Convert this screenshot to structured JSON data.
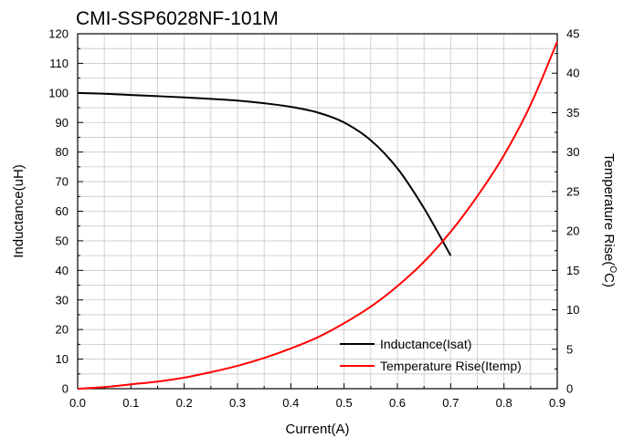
{
  "chart_data": {
    "type": "line",
    "title": "CMI-SSP6028NF-101M",
    "xlabel": "Current(A)",
    "ylabel_left": "Inductance(uH)",
    "ylabel_right": "Temperature Rise(",
    "ylabel_right_degree": "O",
    "ylabel_right_unit": "C)",
    "xlim": [
      0,
      0.9
    ],
    "ylim_left": [
      0,
      120
    ],
    "ylim_right": [
      0,
      45
    ],
    "x_ticks": [
      "0.0",
      "0.1",
      "0.2",
      "0.3",
      "0.4",
      "0.5",
      "0.6",
      "0.7",
      "0.8",
      "0.9"
    ],
    "y_left_ticks": [
      "0",
      "10",
      "20",
      "30",
      "40",
      "50",
      "60",
      "70",
      "80",
      "90",
      "100",
      "110",
      "120"
    ],
    "y_right_ticks": [
      "0",
      "5",
      "10",
      "15",
      "20",
      "25",
      "30",
      "35",
      "40",
      "45"
    ],
    "grid": true,
    "legend_position": "bottom-right",
    "series": [
      {
        "name": "Inductance(Isat)",
        "axis": "left",
        "color": "#000000",
        "x": [
          0,
          0.05,
          0.1,
          0.15,
          0.2,
          0.25,
          0.3,
          0.35,
          0.4,
          0.45,
          0.5,
          0.55,
          0.6,
          0.65,
          0.7
        ],
        "y": [
          100,
          99.7,
          99.3,
          98.9,
          98.5,
          98.0,
          97.4,
          96.5,
          95.3,
          93.4,
          90.0,
          84.0,
          74.5,
          61.0,
          45.0
        ]
      },
      {
        "name": "Temperature Rise(Itemp)",
        "axis": "right",
        "color": "#ff0000",
        "x": [
          0,
          0.05,
          0.1,
          0.15,
          0.2,
          0.25,
          0.3,
          0.35,
          0.4,
          0.45,
          0.5,
          0.55,
          0.6,
          0.65,
          0.7,
          0.75,
          0.8,
          0.85,
          0.9
        ],
        "y": [
          0,
          0.2,
          0.55,
          0.9,
          1.4,
          2.1,
          2.9,
          3.9,
          5.1,
          6.5,
          8.3,
          10.4,
          13.0,
          16.1,
          19.9,
          24.4,
          29.6,
          36.0,
          44.0
        ]
      }
    ]
  }
}
